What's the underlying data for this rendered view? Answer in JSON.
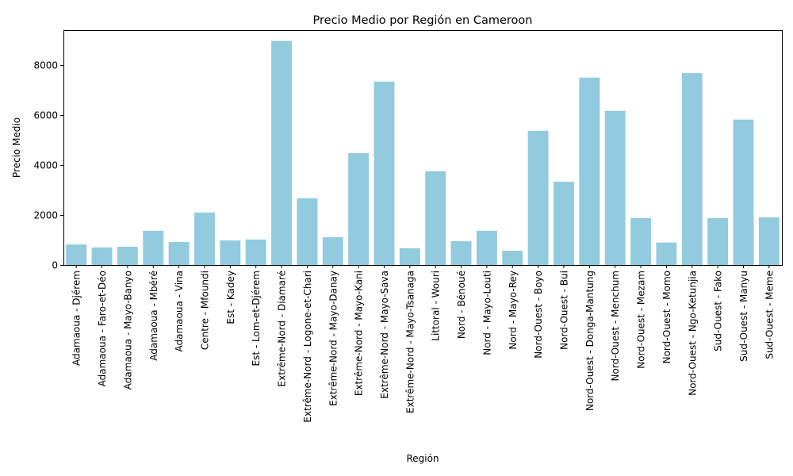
{
  "chart_data": {
    "type": "bar",
    "title": "Precio Medio por Región en Cameroon",
    "xlabel": "Región",
    "ylabel": "Precio Medio",
    "ylim": [
      0,
      9400
    ],
    "yticks": [
      0,
      2000,
      4000,
      6000,
      8000
    ],
    "ytick_labels": [
      "0",
      "2000",
      "4000",
      "6000",
      "8000"
    ],
    "bar_color": "#92cade",
    "grid": false,
    "categories": [
      "Adamaoua - Djérem",
      "Adamaoua - Faro-et-Déo",
      "Adamaoua - Mayo-Banyo",
      "Adamaoua - Mbéré",
      "Adamaoua - Vina",
      "Centre - Mfoundi",
      "Est - Kadey",
      "Est - Lom-et-Djérem",
      "Extrême-Nord - Diamaré",
      "Extrême-Nord - Logone-et-Chari",
      "Extrême-Nord - Mayo-Danay",
      "Extrême-Nord - Mayo-Kani",
      "Extrême-Nord - Mayo-Sava",
      "Extrême-Nord - Mayo-Tsanaga",
      "Littoral - Wouri",
      "Nord - Bénoué",
      "Nord - Mayo-Louti",
      "Nord - Mayo-Rey",
      "Nord-Ouest - Boyo",
      "Nord-Ouest - Bui",
      "Nord-Ouest - Donga-Mantung",
      "Nord-Ouest - Menchum",
      "Nord-Ouest - Mezam",
      "Nord-Ouest - Momo",
      "Nord-Ouest - Ngo-Ketunjia",
      "Sud-Ouest - Fako",
      "Sud-Ouest - Manyu",
      "Sud-Ouest - Meme"
    ],
    "values": [
      820,
      700,
      730,
      1370,
      920,
      2100,
      980,
      1020,
      8970,
      2670,
      1110,
      4480,
      7340,
      670,
      3750,
      950,
      1370,
      570,
      5370,
      3330,
      7500,
      6170,
      1880,
      900,
      7680,
      1880,
      5820,
      1910
    ]
  }
}
